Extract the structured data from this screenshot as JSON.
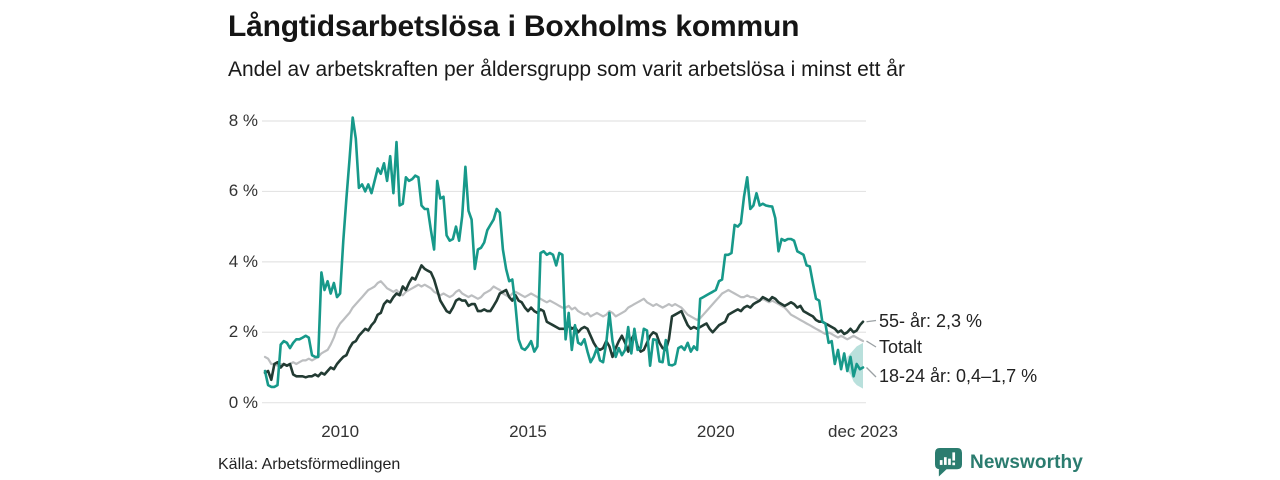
{
  "header": {
    "title": "Långtidsarbetslösa i Boxholms kommun",
    "subtitle": "Andel av arbetskraften per åldersgrupp som varit arbetslösa i minst ett år"
  },
  "chart_data": {
    "type": "line",
    "title": "Långtidsarbetslösa i Boxholms kommun",
    "subtitle": "Andel av arbetskraften per åldersgrupp som varit arbetslösa i minst ett år",
    "unit": "%",
    "ylim": [
      0,
      8
    ],
    "grid": "horizontal",
    "x_start_year": 2008,
    "x_end_label": "dec 2023",
    "points_per_year": 12,
    "y_ticks": [
      {
        "value": 0,
        "label": "0 %"
      },
      {
        "value": 2,
        "label": "2 %"
      },
      {
        "value": 4,
        "label": "4 %"
      },
      {
        "value": 6,
        "label": "6 %"
      },
      {
        "value": 8,
        "label": "8 %"
      }
    ],
    "x_ticks": [
      {
        "year": 2010,
        "label": "2010"
      },
      {
        "year": 2015,
        "label": "2015"
      },
      {
        "year": 2020,
        "label": "2020"
      },
      {
        "year": 2023.9167,
        "label": "dec 2023"
      }
    ],
    "series": [
      {
        "id": "totalt",
        "name": "Totalt",
        "end_label": "Totalt",
        "color": "#bcbec0",
        "values": [
          1.3,
          1.25,
          1.1,
          1.1,
          1.05,
          1.1,
          1.08,
          1.05,
          1.1,
          1.15,
          1.1,
          1.15,
          1.2,
          1.2,
          1.25,
          1.2,
          1.25,
          1.3,
          1.4,
          1.45,
          1.5,
          1.65,
          1.85,
          2.1,
          2.25,
          2.35,
          2.45,
          2.55,
          2.7,
          2.8,
          2.9,
          3.0,
          3.1,
          3.2,
          3.25,
          3.3,
          3.4,
          3.45,
          3.35,
          3.25,
          3.2,
          3.15,
          3.2,
          3.1,
          3.05,
          3.15,
          3.2,
          3.25,
          3.3,
          3.35,
          3.3,
          3.35,
          3.3,
          3.25,
          3.15,
          3.1,
          3.05,
          3.1,
          3.05,
          3.0,
          3.05,
          3.15,
          3.2,
          3.1,
          3.05,
          3.0,
          3.05,
          3.0,
          2.95,
          3.0,
          3.1,
          3.15,
          3.2,
          3.3,
          3.25,
          3.2,
          3.1,
          3.05,
          3.0,
          3.1,
          3.15,
          3.1,
          3.05,
          3.0,
          3.05,
          3.1,
          3.05,
          3.0,
          2.95,
          2.9,
          2.85,
          2.9,
          2.85,
          2.8,
          2.75,
          2.7,
          2.7,
          2.75,
          2.65,
          2.7,
          2.6,
          2.55,
          2.5,
          2.55,
          2.45,
          2.5,
          2.55,
          2.5,
          2.45,
          2.5,
          2.6,
          2.55,
          2.45,
          2.5,
          2.55,
          2.6,
          2.7,
          2.75,
          2.8,
          2.85,
          2.9,
          2.95,
          2.85,
          2.8,
          2.75,
          2.8,
          2.75,
          2.7,
          2.75,
          2.8,
          2.75,
          2.8,
          2.75,
          2.7,
          2.6,
          2.5,
          2.45,
          2.4,
          2.35,
          2.4,
          2.5,
          2.6,
          2.7,
          2.8,
          2.9,
          3.0,
          3.1,
          3.15,
          3.2,
          3.15,
          3.1,
          3.05,
          3.0,
          3.0,
          3.05,
          3.0,
          3.0,
          2.95,
          2.9,
          2.95,
          2.9,
          2.85,
          2.9,
          2.85,
          2.8,
          2.75,
          2.7,
          2.6,
          2.5,
          2.45,
          2.4,
          2.35,
          2.3,
          2.25,
          2.2,
          2.15,
          2.1,
          2.05,
          2.0,
          1.95,
          2.0,
          1.95,
          1.9,
          1.85,
          1.9,
          1.85,
          1.8,
          1.85,
          1.9,
          1.85,
          1.8,
          1.75
        ]
      },
      {
        "id": "55-ar",
        "name": "55- år",
        "end_label": "55- år: 2,3 %",
        "color": "#223b33",
        "values": [
          0.85,
          0.9,
          0.65,
          1.1,
          1.15,
          1.0,
          1.1,
          1.05,
          1.1,
          0.8,
          0.75,
          0.75,
          0.75,
          0.72,
          0.75,
          0.75,
          0.8,
          0.75,
          0.85,
          0.8,
          0.9,
          1.0,
          0.95,
          1.1,
          1.2,
          1.3,
          1.35,
          1.55,
          1.7,
          1.75,
          1.9,
          2.0,
          2.1,
          2.05,
          2.2,
          2.3,
          2.5,
          2.55,
          2.8,
          2.9,
          2.85,
          3.0,
          3.1,
          3.05,
          3.3,
          3.2,
          3.4,
          3.55,
          3.5,
          3.7,
          3.9,
          3.8,
          3.75,
          3.7,
          3.5,
          3.2,
          2.9,
          2.75,
          2.6,
          2.55,
          2.7,
          2.9,
          2.95,
          2.9,
          2.9,
          2.75,
          2.8,
          2.8,
          2.6,
          2.6,
          2.65,
          2.6,
          2.6,
          2.75,
          2.9,
          3.1,
          3.15,
          3.2,
          3.0,
          2.9,
          3.05,
          2.9,
          2.85,
          2.7,
          2.6,
          2.7,
          2.6,
          2.55,
          2.65,
          2.6,
          2.3,
          2.25,
          2.2,
          2.15,
          2.1,
          2.1,
          2.1,
          2.2,
          2.1,
          2.15,
          2.0,
          2.1,
          2.15,
          2.1,
          1.9,
          1.7,
          1.55,
          1.5,
          1.55,
          1.75,
          1.6,
          1.3,
          1.55,
          1.75,
          1.9,
          1.7,
          1.45,
          1.8,
          1.95,
          1.6,
          1.45,
          1.5,
          1.7,
          1.9,
          2.0,
          1.95,
          1.7,
          1.55,
          1.5,
          1.8,
          2.45,
          2.5,
          2.55,
          2.6,
          2.4,
          2.2,
          2.1,
          2.15,
          2.1,
          2.15,
          2.2,
          2.25,
          2.1,
          2.0,
          2.1,
          2.2,
          2.25,
          2.3,
          2.5,
          2.55,
          2.6,
          2.65,
          2.6,
          2.7,
          2.75,
          2.7,
          2.8,
          2.85,
          2.9,
          3.0,
          2.95,
          2.9,
          3.0,
          2.95,
          2.85,
          2.8,
          2.75,
          2.8,
          2.85,
          2.8,
          2.7,
          2.75,
          2.6,
          2.55,
          2.5,
          2.45,
          2.35,
          2.3,
          2.3,
          2.25,
          2.2,
          2.15,
          2.1,
          2.0,
          2.05,
          1.95,
          2.0,
          2.1,
          2.0,
          2.05,
          2.2,
          2.3
        ]
      },
      {
        "id": "18-24-ar",
        "name": "18-24 år",
        "end_label": "18-24 år: 0,4–1,7 %",
        "color": "#17998a",
        "values": [
          0.9,
          0.5,
          0.45,
          0.45,
          0.5,
          1.65,
          1.75,
          1.7,
          1.55,
          1.7,
          1.8,
          1.8,
          1.85,
          1.9,
          1.85,
          1.35,
          1.3,
          1.3,
          3.7,
          3.2,
          3.45,
          3.1,
          3.4,
          3.0,
          3.1,
          4.6,
          5.8,
          6.9,
          8.1,
          7.5,
          6.1,
          6.2,
          6.0,
          6.2,
          5.95,
          6.3,
          6.65,
          6.5,
          6.8,
          6.3,
          7.0,
          5.95,
          7.4,
          5.6,
          5.65,
          6.4,
          6.3,
          6.35,
          6.45,
          6.4,
          5.6,
          5.5,
          5.5,
          4.9,
          4.35,
          6.3,
          5.8,
          5.85,
          4.75,
          4.6,
          4.65,
          5.0,
          4.6,
          5.3,
          6.7,
          5.45,
          5.2,
          3.8,
          4.35,
          4.4,
          4.55,
          4.9,
          5.05,
          5.2,
          5.5,
          5.4,
          4.35,
          3.8,
          3.45,
          3.5,
          2.75,
          1.8,
          1.55,
          1.5,
          1.6,
          1.75,
          1.45,
          1.6,
          4.25,
          4.3,
          4.2,
          4.25,
          4.2,
          3.9,
          4.25,
          4.2,
          1.8,
          2.55,
          1.5,
          2.2,
          1.7,
          1.65,
          1.8,
          1.45,
          1.15,
          1.3,
          1.55,
          1.2,
          1.15,
          1.7,
          2.55,
          1.75,
          1.3,
          1.55,
          1.35,
          1.5,
          2.15,
          1.4,
          2.1,
          1.5,
          1.55,
          2.1,
          2.05,
          1.05,
          1.8,
          1.78,
          1.17,
          1.15,
          1.78,
          1.08,
          1.06,
          1.1,
          1.55,
          1.6,
          1.5,
          1.7,
          1.45,
          1.6,
          1.5,
          2.95,
          3.0,
          3.05,
          3.1,
          3.15,
          3.2,
          3.45,
          3.5,
          4.2,
          4.2,
          4.25,
          5.05,
          5.0,
          5.1,
          5.85,
          6.4,
          5.5,
          5.6,
          5.95,
          5.6,
          5.65,
          5.6,
          5.58,
          5.57,
          5.24,
          4.3,
          4.65,
          4.6,
          4.65,
          4.65,
          4.6,
          4.3,
          4.25,
          4.2,
          3.9,
          3.87,
          3.4,
          2.95,
          2.9,
          2.3,
          2.25,
          1.7,
          1.75,
          1.1,
          1.5,
          0.95,
          1.4,
          0.9,
          1.3,
          0.75,
          1.1,
          0.95,
          1.0
        ]
      }
    ],
    "uncertainty_band": {
      "series": "18-24-ar",
      "label_range": "0,4–1,7 %",
      "color": "rgba(23,153,138,0.3)",
      "points": [
        [
          186,
          0.9,
          1.3
        ],
        [
          187,
          0.8,
          1.4
        ],
        [
          188,
          0.6,
          1.5
        ],
        [
          189,
          0.5,
          1.6
        ],
        [
          190,
          0.45,
          1.65
        ],
        [
          191,
          0.4,
          1.7
        ]
      ]
    }
  },
  "footer": {
    "source": "Källa: Arbetsförmedlingen",
    "brand": "Newsworthy"
  }
}
